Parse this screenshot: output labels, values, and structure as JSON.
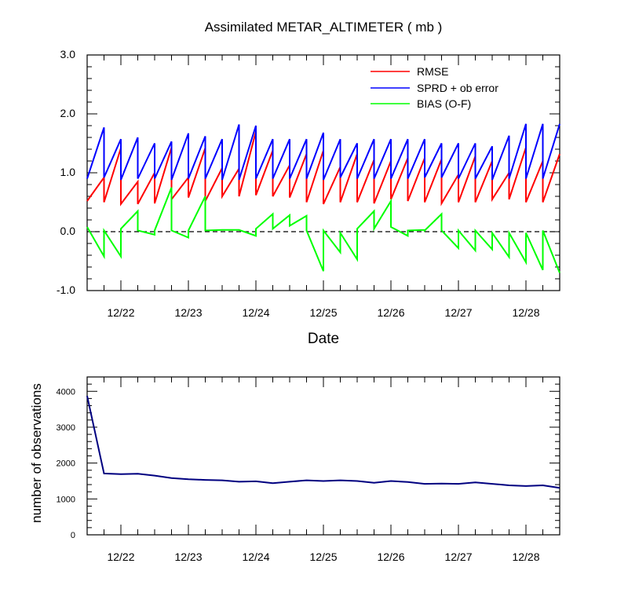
{
  "chart_data": [
    {
      "type": "line",
      "title": "Assimilated METAR_ALTIMETER ( mb )",
      "xlabel": "Date",
      "ylabel": "",
      "xticks": [
        "12/22",
        "12/23",
        "12/24",
        "12/25",
        "12/26",
        "12/27",
        "12/28"
      ],
      "yticks": [
        "-1.0",
        "0.0",
        "1.0",
        "2.0",
        "3.0"
      ],
      "ylim": [
        -1.0,
        3.0
      ],
      "xlim_days": [
        21.5,
        28.5
      ],
      "reference_line": {
        "y": 0.0,
        "style": "dashed"
      },
      "legend": {
        "placement": "top-right"
      },
      "colors": {
        "RMSE": "#ff0000",
        "SPRD": "#0000ff",
        "BIAS": "#00ff00"
      },
      "series": [
        {
          "name": "RMSE",
          "x": [
            21.5,
            21.75,
            21.75,
            22.0,
            22.0,
            22.25,
            22.25,
            22.5,
            22.5,
            22.75,
            22.75,
            23.0,
            23.0,
            23.25,
            23.25,
            23.5,
            23.5,
            23.75,
            23.75,
            24.0,
            24.0,
            24.25,
            24.25,
            24.5,
            24.5,
            24.75,
            24.75,
            25.0,
            25.0,
            25.25,
            25.25,
            25.5,
            25.5,
            25.75,
            25.75,
            26.0,
            26.0,
            26.25,
            26.25,
            26.5,
            26.5,
            26.75,
            26.75,
            27.0,
            27.0,
            27.25,
            27.25,
            27.5,
            27.5,
            27.75,
            27.75,
            28.0,
            28.0,
            28.25,
            28.25,
            28.5
          ],
          "y": [
            0.52,
            0.92,
            0.5,
            1.42,
            0.47,
            0.85,
            0.47,
            1.0,
            0.48,
            1.43,
            0.55,
            0.92,
            0.58,
            1.42,
            0.52,
            1.08,
            0.6,
            1.07,
            0.6,
            1.7,
            0.62,
            1.38,
            0.6,
            1.13,
            0.58,
            1.32,
            0.5,
            1.38,
            0.47,
            1.1,
            0.5,
            1.32,
            0.5,
            1.22,
            0.48,
            1.2,
            0.55,
            1.25,
            0.52,
            1.25,
            0.5,
            1.23,
            0.48,
            0.97,
            0.5,
            1.28,
            0.5,
            1.2,
            0.55,
            1.0,
            0.55,
            1.43,
            0.5,
            1.2,
            0.5,
            1.32
          ]
        },
        {
          "name": "SPRD + ob error",
          "x": [
            21.5,
            21.75,
            21.75,
            22.0,
            22.0,
            22.25,
            22.25,
            22.5,
            22.5,
            22.75,
            22.75,
            23.0,
            23.0,
            23.25,
            23.25,
            23.5,
            23.5,
            23.75,
            23.75,
            24.0,
            24.0,
            24.25,
            24.25,
            24.5,
            24.5,
            24.75,
            24.75,
            25.0,
            25.0,
            25.25,
            25.25,
            25.5,
            25.5,
            25.75,
            25.75,
            26.0,
            26.0,
            26.25,
            26.25,
            26.5,
            26.5,
            26.75,
            26.75,
            27.0,
            27.0,
            27.25,
            27.25,
            27.5,
            27.5,
            27.75,
            27.75,
            28.0,
            28.0,
            28.25,
            28.25,
            28.5
          ],
          "y": [
            0.9,
            1.77,
            0.92,
            1.57,
            0.88,
            1.6,
            0.9,
            1.5,
            0.9,
            1.53,
            0.88,
            1.67,
            0.9,
            1.62,
            0.9,
            1.57,
            0.88,
            1.82,
            0.88,
            1.8,
            0.9,
            1.57,
            0.9,
            1.57,
            0.9,
            1.57,
            0.9,
            1.68,
            0.88,
            1.57,
            0.92,
            1.5,
            0.9,
            1.57,
            0.9,
            1.57,
            0.9,
            1.57,
            0.9,
            1.57,
            0.92,
            1.5,
            0.92,
            1.5,
            0.9,
            1.5,
            0.9,
            1.45,
            0.88,
            1.63,
            0.9,
            1.83,
            0.9,
            1.83,
            0.9,
            1.83
          ]
        },
        {
          "name": "BIAS (O-F)",
          "x": [
            21.5,
            21.75,
            21.75,
            22.0,
            22.0,
            22.25,
            22.25,
            22.5,
            22.5,
            22.75,
            22.75,
            23.0,
            23.0,
            23.25,
            23.25,
            23.5,
            23.5,
            23.75,
            23.75,
            24.0,
            24.0,
            24.25,
            24.25,
            24.5,
            24.5,
            24.75,
            24.75,
            25.0,
            25.0,
            25.25,
            25.25,
            25.5,
            25.5,
            25.75,
            25.75,
            26.0,
            26.0,
            26.25,
            26.25,
            26.5,
            26.5,
            26.75,
            26.75,
            27.0,
            27.0,
            27.25,
            27.25,
            27.5,
            27.5,
            27.75,
            27.75,
            28.0,
            28.0,
            28.25,
            28.25,
            28.5
          ],
          "y": [
            0.08,
            -0.42,
            0.02,
            -0.42,
            0.05,
            0.35,
            0.02,
            -0.05,
            0.02,
            0.75,
            0.02,
            -0.1,
            0.02,
            0.6,
            0.02,
            0.03,
            0.03,
            0.03,
            0.03,
            -0.07,
            0.05,
            0.3,
            0.05,
            0.28,
            0.1,
            0.27,
            0.02,
            -0.67,
            0.02,
            -0.35,
            -0.02,
            -0.47,
            0.05,
            0.35,
            0.05,
            0.52,
            0.08,
            -0.07,
            0.02,
            0.03,
            0.02,
            0.3,
            0.02,
            -0.28,
            0.02,
            -0.32,
            0.02,
            -0.3,
            -0.02,
            -0.43,
            -0.02,
            -0.52,
            -0.02,
            -0.65,
            0.02,
            -0.7
          ]
        }
      ]
    },
    {
      "type": "line",
      "title": "",
      "xlabel": "",
      "ylabel": "number of observations",
      "xticks": [
        "12/22",
        "12/23",
        "12/24",
        "12/25",
        "12/26",
        "12/27",
        "12/28"
      ],
      "yticks": [
        "0",
        "1000",
        "2000",
        "3000",
        "4000"
      ],
      "ylim": [
        0,
        4400
      ],
      "xlim_days": [
        21.5,
        28.5
      ],
      "colors": {
        "count": "#000080"
      },
      "series": [
        {
          "x": [
            21.5,
            21.75,
            22.0,
            22.25,
            22.5,
            22.75,
            23.0,
            23.25,
            23.5,
            23.75,
            24.0,
            24.25,
            24.5,
            24.75,
            25.0,
            25.25,
            25.5,
            25.75,
            26.0,
            26.25,
            26.5,
            26.75,
            27.0,
            27.25,
            27.5,
            27.75,
            28.0,
            28.25,
            28.5
          ],
          "y": [
            3870,
            1710,
            1690,
            1700,
            1650,
            1580,
            1550,
            1530,
            1520,
            1480,
            1490,
            1440,
            1480,
            1520,
            1500,
            1520,
            1500,
            1450,
            1500,
            1470,
            1420,
            1430,
            1420,
            1460,
            1420,
            1380,
            1360,
            1380,
            1310
          ]
        }
      ]
    }
  ]
}
